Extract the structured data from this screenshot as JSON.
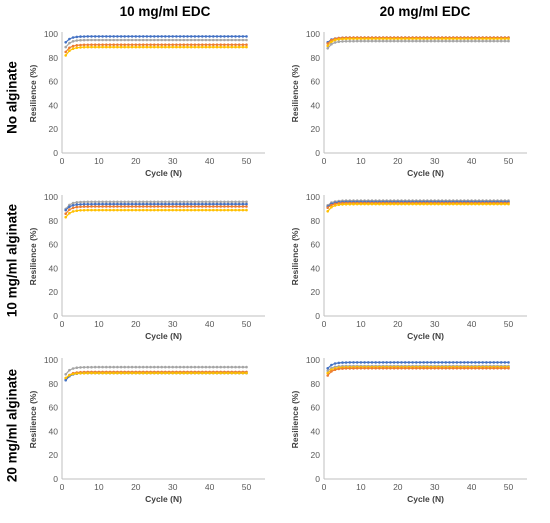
{
  "column_titles": [
    "10 mg/ml EDC",
    "20 mg/ml EDC"
  ],
  "row_titles": [
    "No alginate",
    "10 mg/ml alginate",
    "20 mg/ml alginate"
  ],
  "colors": {
    "blue": "#4472C4",
    "orange": "#ED7D31",
    "gray": "#A5A5A5",
    "yellow": "#FFC000"
  },
  "chart_data": [
    {
      "type": "line",
      "row": 0,
      "col": 0,
      "xlabel": "Cycle (N)",
      "ylabel": "Resilience (%)",
      "xlim": [
        0,
        55
      ],
      "ylim": [
        0,
        100
      ],
      "xticks": [
        0,
        10,
        20,
        30,
        40,
        50
      ],
      "yticks": [
        0,
        20,
        40,
        60,
        80,
        100
      ],
      "series": [
        {
          "color": "blue",
          "start": 93,
          "end": 98
        },
        {
          "color": "gray",
          "start": 89,
          "end": 95
        },
        {
          "color": "orange",
          "start": 85,
          "end": 91
        },
        {
          "color": "yellow",
          "start": 82,
          "end": 89
        }
      ]
    },
    {
      "type": "line",
      "row": 0,
      "col": 1,
      "xlabel": "Cycle (N)",
      "ylabel": "Resilience (%)",
      "xlim": [
        0,
        55
      ],
      "ylim": [
        0,
        100
      ],
      "xticks": [
        0,
        10,
        20,
        30,
        40,
        50
      ],
      "yticks": [
        0,
        20,
        40,
        60,
        80,
        100
      ],
      "series": [
        {
          "color": "blue",
          "start": 93,
          "end": 97
        },
        {
          "color": "orange",
          "start": 92,
          "end": 97
        },
        {
          "color": "yellow",
          "start": 90,
          "end": 96
        },
        {
          "color": "gray",
          "start": 88,
          "end": 94
        }
      ]
    },
    {
      "type": "line",
      "row": 1,
      "col": 0,
      "xlabel": "Cycle (N)",
      "ylabel": "Resilience (%)",
      "xlim": [
        0,
        55
      ],
      "ylim": [
        0,
        100
      ],
      "xticks": [
        0,
        10,
        20,
        30,
        40,
        50
      ],
      "yticks": [
        0,
        20,
        40,
        60,
        80,
        100
      ],
      "series": [
        {
          "color": "gray",
          "start": 90,
          "end": 96
        },
        {
          "color": "blue",
          "start": 89,
          "end": 94
        },
        {
          "color": "orange",
          "start": 86,
          "end": 92
        },
        {
          "color": "yellow",
          "start": 83,
          "end": 89
        }
      ]
    },
    {
      "type": "line",
      "row": 1,
      "col": 1,
      "xlabel": "Cycle (N)",
      "ylabel": "Resilience (%)",
      "xlim": [
        0,
        55
      ],
      "ylim": [
        0,
        100
      ],
      "xticks": [
        0,
        10,
        20,
        30,
        40,
        50
      ],
      "yticks": [
        0,
        20,
        40,
        60,
        80,
        100
      ],
      "series": [
        {
          "color": "gray",
          "start": 93,
          "end": 97
        },
        {
          "color": "blue",
          "start": 92,
          "end": 96
        },
        {
          "color": "orange",
          "start": 91,
          "end": 95
        },
        {
          "color": "yellow",
          "start": 88,
          "end": 94
        }
      ]
    },
    {
      "type": "line",
      "row": 2,
      "col": 0,
      "xlabel": "Cycle (N)",
      "ylabel": "Resilience (%)",
      "xlim": [
        0,
        55
      ],
      "ylim": [
        0,
        100
      ],
      "xticks": [
        0,
        10,
        20,
        30,
        40,
        50
      ],
      "yticks": [
        0,
        20,
        40,
        60,
        80,
        100
      ],
      "series": [
        {
          "color": "gray",
          "start": 88,
          "end": 94
        },
        {
          "color": "orange",
          "start": 84,
          "end": 90
        },
        {
          "color": "blue",
          "start": 83,
          "end": 89
        },
        {
          "color": "yellow",
          "start": 85,
          "end": 89
        }
      ]
    },
    {
      "type": "line",
      "row": 2,
      "col": 1,
      "xlabel": "Cycle (N)",
      "ylabel": "Resilience (%)",
      "xlim": [
        0,
        55
      ],
      "ylim": [
        0,
        100
      ],
      "xticks": [
        0,
        10,
        20,
        30,
        40,
        50
      ],
      "yticks": [
        0,
        20,
        40,
        60,
        80,
        100
      ],
      "series": [
        {
          "color": "blue",
          "start": 93,
          "end": 98
        },
        {
          "color": "gray",
          "start": 91,
          "end": 95
        },
        {
          "color": "yellow",
          "start": 89,
          "end": 94
        },
        {
          "color": "orange",
          "start": 87,
          "end": 93
        }
      ]
    }
  ]
}
